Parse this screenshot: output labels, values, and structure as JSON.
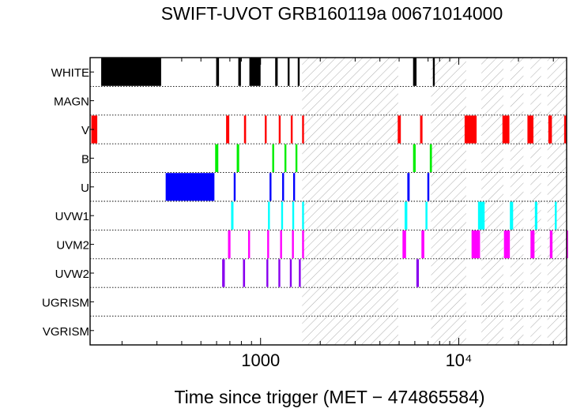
{
  "chart_data": {
    "type": "timeline",
    "title": "SWIFT-UVOT GRB160119a 00671014000",
    "xlabel": "Time since trigger (MET − 474865584)",
    "xscale": "log",
    "xlim": [
      138,
      35000
    ],
    "x_tick_labels": [
      {
        "value": 1000,
        "text": "1000"
      },
      {
        "value": 10000,
        "text": "10⁴"
      }
    ],
    "rows": [
      "WHITE",
      "MAGN",
      "V",
      "B",
      "U",
      "UVW1",
      "UVM2",
      "UVW2",
      "UGRISM",
      "VGRISM"
    ],
    "row_separator_style": "dotted",
    "hatched_intervals": [
      [
        1620,
        4950
      ],
      [
        7250,
        10900
      ],
      [
        13000,
        16800
      ],
      [
        18200,
        21200
      ],
      [
        23000,
        26000
      ],
      [
        28000,
        35000
      ]
    ],
    "hatch_spans_rows": [
      "WHITE",
      "VGRISM"
    ],
    "colors": {
      "WHITE": "#000000",
      "V": "#ff0000",
      "B": "#00ee00",
      "U": "#0000ff",
      "UVW1": "#00ffff",
      "UVM2": "#ff00ff",
      "UVW2": "#8800ee"
    },
    "exposures": {
      "WHITE": [
        [
          157,
          315
        ],
        [
          597,
          617
        ],
        [
          772,
          796
        ],
        [
          878,
          1000
        ],
        [
          1185,
          1220
        ],
        [
          1370,
          1400
        ],
        [
          1540,
          1560
        ],
        [
          5880,
          6120
        ],
        [
          7400,
          7500
        ]
      ],
      "MAGN": [],
      "V": [
        [
          140,
          150
        ],
        [
          670,
          695
        ],
        [
          825,
          845
        ],
        [
          1050,
          1070
        ],
        [
          1235,
          1255
        ],
        [
          1420,
          1440
        ],
        [
          1620,
          1640
        ],
        [
          4920,
          5100
        ],
        [
          6380,
          6560
        ],
        [
          10700,
          12300
        ],
        [
          16600,
          18000
        ],
        [
          22200,
          23800
        ],
        [
          28300,
          29500
        ],
        [
          34000,
          35000
        ]
      ],
      "B": [
        [
          590,
          612
        ],
        [
          758,
          780
        ],
        [
          1145,
          1165
        ],
        [
          1320,
          1340
        ],
        [
          1500,
          1520
        ],
        [
          5880,
          6060
        ],
        [
          7140,
          7320
        ]
      ],
      "U": [
        [
          332,
          585
        ],
        [
          732,
          748
        ],
        [
          1110,
          1125
        ],
        [
          1285,
          1300
        ],
        [
          1460,
          1476
        ],
        [
          5500,
          5650
        ],
        [
          6940,
          7100
        ]
      ],
      "UVW1": [
        [
          710,
          730
        ],
        [
          1090,
          1110
        ],
        [
          1270,
          1290
        ],
        [
          1445,
          1465
        ],
        [
          1620,
          1640
        ],
        [
          5330,
          5500
        ],
        [
          6790,
          6950
        ],
        [
          12500,
          13500
        ],
        [
          18100,
          18800
        ],
        [
          24200,
          24900
        ],
        [
          30500,
          31200
        ]
      ],
      "UVM2": [
        [
          685,
          705
        ],
        [
          865,
          885
        ],
        [
          1080,
          1100
        ],
        [
          1255,
          1275
        ],
        [
          1440,
          1460
        ],
        [
          1620,
          1640
        ],
        [
          5200,
          5420
        ],
        [
          6480,
          6700
        ],
        [
          11600,
          12800
        ],
        [
          16900,
          18100
        ],
        [
          23000,
          24100
        ],
        [
          28800,
          29700
        ],
        [
          34800,
          35000
        ]
      ],
      "UVW2": [
        [
          640,
          660
        ],
        [
          815,
          835
        ],
        [
          1070,
          1090
        ],
        [
          1230,
          1250
        ],
        [
          1405,
          1425
        ],
        [
          1560,
          1580
        ],
        [
          6110,
          6290
        ]
      ],
      "UGRISM": [],
      "VGRISM": []
    }
  }
}
